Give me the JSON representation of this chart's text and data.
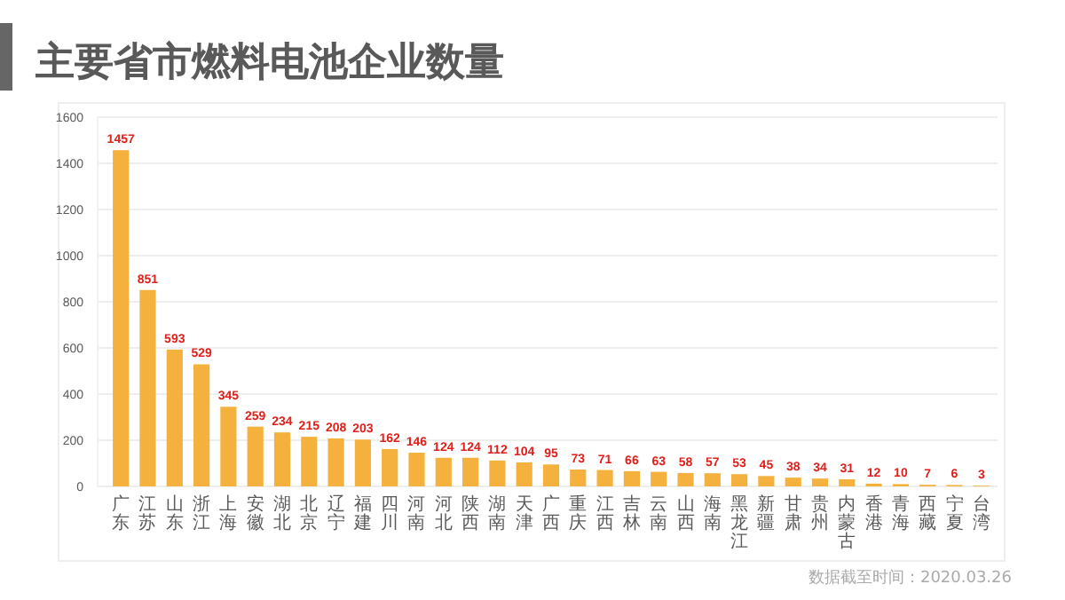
{
  "chart_data": {
    "type": "bar",
    "title": "主要省市燃料电池企业数量",
    "categories": [
      "广东",
      "江苏",
      "山东",
      "浙江",
      "上海",
      "安徽",
      "湖北",
      "北京",
      "辽宁",
      "福建",
      "四川",
      "河南",
      "河北",
      "陕西",
      "湖南",
      "天津",
      "广西",
      "重庆",
      "江西",
      "吉林",
      "云南",
      "山西",
      "海南",
      "黑龙江",
      "新疆",
      "甘肃",
      "贵州",
      "内蒙古",
      "香港",
      "青海",
      "西藏",
      "宁夏",
      "台湾"
    ],
    "values": [
      1457,
      851,
      593,
      529,
      345,
      259,
      234,
      215,
      208,
      203,
      162,
      146,
      124,
      124,
      112,
      104,
      95,
      73,
      71,
      66,
      63,
      58,
      57,
      53,
      45,
      38,
      34,
      31,
      12,
      10,
      7,
      6,
      3
    ],
    "color": "#f4b13e",
    "ylim": [
      0,
      1600
    ],
    "yticks": [
      0,
      200,
      400,
      600,
      800,
      1000,
      1200,
      1400,
      1600
    ],
    "grid": "y",
    "data_labels": true,
    "annotations": [
      "数据截至时间：2020.03.26"
    ]
  }
}
